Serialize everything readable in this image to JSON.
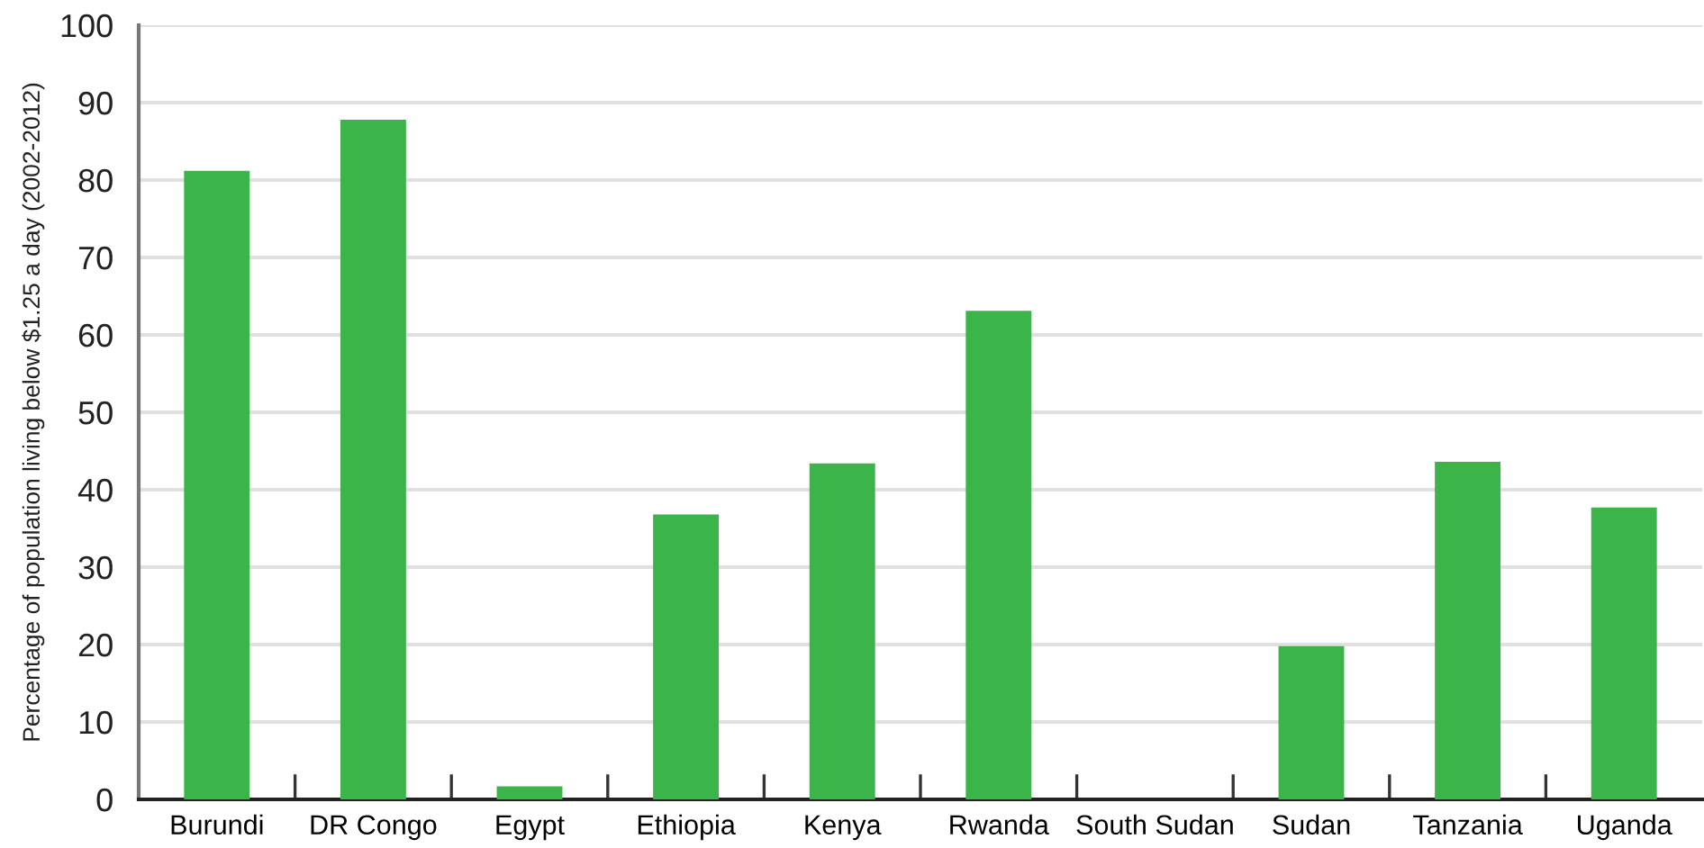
{
  "chart_data": {
    "type": "bar",
    "ylabel": "Percentage of population living below $1.25 a day (2002-2012)",
    "categories": [
      "Burundi",
      "DR Congo",
      "Egypt",
      "Ethiopia",
      "Kenya",
      "Rwanda",
      "South Sudan",
      "Sudan",
      "Tanzania",
      "Uganda"
    ],
    "values": [
      81.2,
      87.8,
      1.7,
      36.8,
      43.4,
      63.1,
      null,
      19.8,
      43.6,
      37.7
    ],
    "color": "#3bb54a",
    "ylim": [
      0,
      100
    ],
    "yticks": [
      0,
      10,
      20,
      30,
      40,
      50,
      60,
      70,
      80,
      90,
      100
    ],
    "grid": "y",
    "legend": false
  }
}
